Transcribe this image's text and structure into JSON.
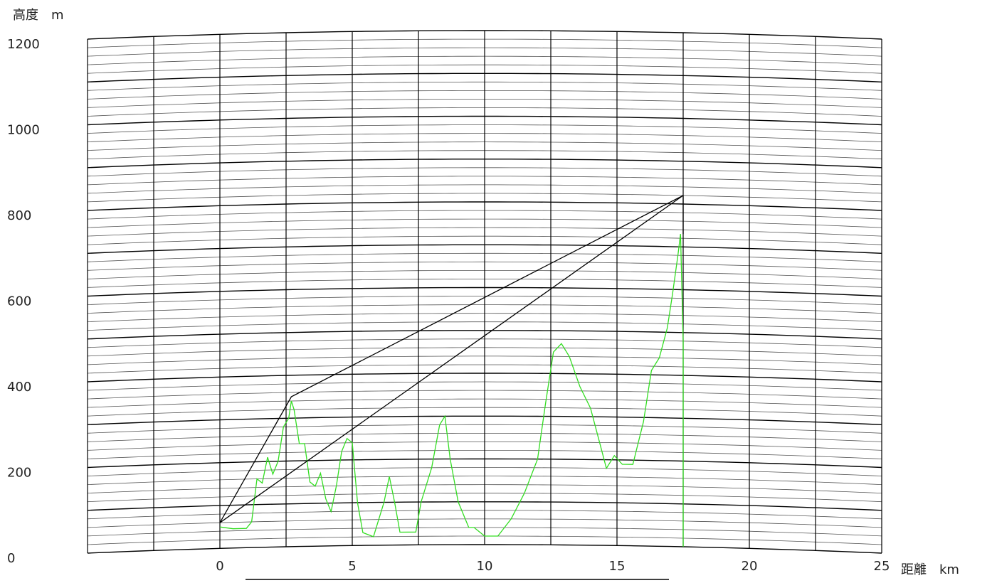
{
  "chart_data": {
    "type": "line",
    "y_label": "高度　m",
    "x_label": "距離　km",
    "xlim": [
      -5,
      25
    ],
    "ylim": [
      0,
      1200
    ],
    "xticks": [
      0,
      5,
      10,
      15,
      20,
      25
    ],
    "yticks": [
      0,
      200,
      400,
      600,
      800,
      1000,
      1200
    ],
    "xgrid": [
      -5,
      -2.5,
      0,
      2.5,
      5,
      7.5,
      10,
      12.5,
      15,
      17.5,
      20,
      22.5,
      25
    ],
    "ygrid_major": [
      0,
      100,
      200,
      300,
      400,
      500,
      600,
      700,
      800,
      900,
      1000,
      1100,
      1200
    ],
    "ygrid_minor": [
      20,
      40,
      60,
      80,
      120,
      140,
      160,
      180,
      220,
      240,
      260,
      280,
      320,
      340,
      360,
      380,
      420,
      440,
      460,
      480,
      520,
      540,
      560,
      580,
      620,
      640,
      660,
      680,
      720,
      740,
      760,
      780,
      820,
      840,
      860,
      880,
      920,
      940,
      960,
      980,
      1020,
      1040,
      1060,
      1080,
      1120,
      1140,
      1160,
      1180
    ],
    "grid": true,
    "series": [
      {
        "color": "#33dd22",
        "x": [
          0,
          0.5,
          1.0,
          1.2,
          1.4,
          1.6,
          1.8,
          2.0,
          2.2,
          2.4,
          2.6,
          2.7,
          2.8,
          3.0,
          3.2,
          3.4,
          3.6,
          3.8,
          4.0,
          4.2,
          4.4,
          4.6,
          4.8,
          5.0,
          5.2,
          5.4,
          5.8,
          6.2,
          6.4,
          6.6,
          6.8,
          7.4,
          7.6,
          8.0,
          8.3,
          8.5,
          8.7,
          9.0,
          9.4,
          9.6,
          10.0,
          10.5,
          11.0,
          11.5,
          12.0,
          12.3,
          12.6,
          12.9,
          13.2,
          13.6,
          14.0,
          14.3,
          14.6,
          14.9,
          15.2,
          15.6,
          16.0,
          16.3,
          16.6,
          16.9,
          17.1,
          17.3,
          17.4,
          17.5,
          17.5
        ],
        "values": [
          50,
          45,
          45,
          60,
          160,
          150,
          210,
          170,
          200,
          280,
          300,
          340,
          320,
          240,
          240,
          150,
          140,
          170,
          110,
          80,
          140,
          220,
          250,
          240,
          100,
          30,
          20,
          100,
          160,
          100,
          30,
          30,
          100,
          180,
          280,
          300,
          200,
          100,
          40,
          40,
          20,
          20,
          60,
          120,
          200,
          330,
          450,
          470,
          440,
          370,
          320,
          250,
          180,
          210,
          190,
          190,
          290,
          410,
          440,
          510,
          590,
          680,
          730,
          480,
          0
        ]
      },
      {
        "color": "#000000",
        "x": [
          0,
          2.7,
          17.5,
          0
        ],
        "values": [
          60,
          350,
          820,
          60
        ]
      },
      {
        "color": "#000000",
        "x": [
          17.5,
          17.5
        ],
        "values": [
          820,
          730
        ]
      }
    ]
  }
}
